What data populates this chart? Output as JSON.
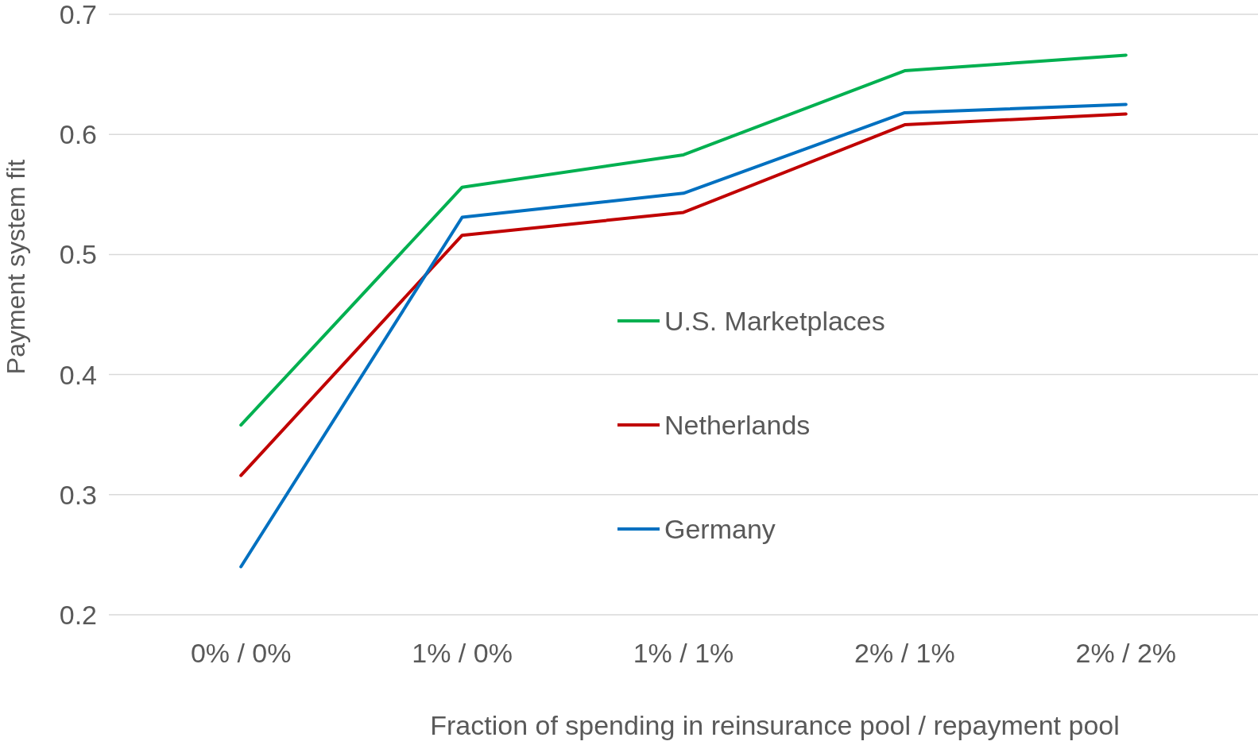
{
  "chart_data": {
    "type": "line",
    "xlabel": "Fraction of spending in reinsurance pool / repayment pool",
    "ylabel": "Payment system fit",
    "categories": [
      "0% / 0%",
      "1% / 0%",
      "1% / 1%",
      "2% / 1%",
      "2% / 2%"
    ],
    "series": [
      {
        "name": "U.S. Marketplaces",
        "color": "#00b050",
        "values": [
          0.358,
          0.556,
          0.583,
          0.653,
          0.666
        ]
      },
      {
        "name": "Netherlands",
        "color": "#c00000",
        "values": [
          0.316,
          0.516,
          0.535,
          0.608,
          0.617
        ]
      },
      {
        "name": "Germany",
        "color": "#0070c0",
        "values": [
          0.24,
          0.531,
          0.551,
          0.618,
          0.625
        ]
      }
    ],
    "ylim": [
      0.2,
      0.7
    ],
    "yticks": [
      0.2,
      0.3,
      0.4,
      0.5,
      0.6,
      0.7
    ],
    "grid": "y",
    "legend": "center",
    "marker": "none",
    "line_style": "solid"
  }
}
